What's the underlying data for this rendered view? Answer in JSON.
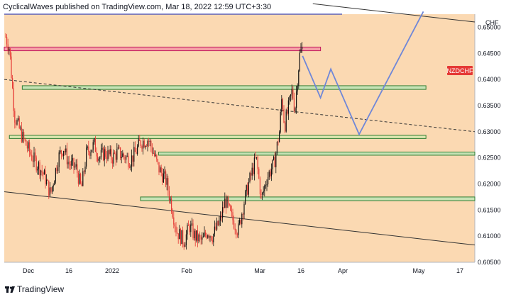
{
  "header": {
    "publisher_text": "CyclicalWaves published on TradingView.com, Mar 18, 2022 12:59 UTC+3:30"
  },
  "footer": {
    "brand": "TradingView"
  },
  "chart_data": {
    "type": "candlestick",
    "symbol": "NZDCHF",
    "currency": "CHF",
    "ylim": [
      0.605,
      0.6525
    ],
    "y_ticks": [
      "0.65000",
      "0.64500",
      "0.64000",
      "0.63500",
      "0.63000",
      "0.62500",
      "0.62000",
      "0.61500",
      "0.61000",
      "0.60500"
    ],
    "x_ticks": [
      "Dec",
      "16",
      "2022",
      "Feb",
      "Mar",
      "16",
      "Apr",
      "May",
      "17"
    ],
    "last_price_label": "NZDCHF",
    "price_path": [
      [
        "2021-11-22",
        0.649
      ],
      [
        "2021-11-24",
        0.646
      ],
      [
        "2021-11-26",
        0.633
      ],
      [
        "2021-11-29",
        0.629
      ],
      [
        "2021-12-01",
        0.627
      ],
      [
        "2021-12-03",
        0.625
      ],
      [
        "2021-12-06",
        0.623
      ],
      [
        "2021-12-08",
        0.621
      ],
      [
        "2021-12-10",
        0.618
      ],
      [
        "2021-12-13",
        0.625
      ],
      [
        "2021-12-15",
        0.627
      ],
      [
        "2021-12-17",
        0.624
      ],
      [
        "2021-12-20",
        0.623
      ],
      [
        "2021-12-22",
        0.619
      ],
      [
        "2021-12-24",
        0.626
      ],
      [
        "2021-12-27",
        0.6275
      ],
      [
        "2021-12-29",
        0.625
      ],
      [
        "2021-12-31",
        0.626
      ],
      [
        "2022-01-03",
        0.625
      ],
      [
        "2022-01-05",
        0.626
      ],
      [
        "2022-01-07",
        0.6255
      ],
      [
        "2022-01-10",
        0.6245
      ],
      [
        "2022-01-12",
        0.626
      ],
      [
        "2022-01-14",
        0.628
      ],
      [
        "2022-01-17",
        0.6285
      ],
      [
        "2022-01-19",
        0.626
      ],
      [
        "2022-01-21",
        0.623
      ],
      [
        "2022-01-24",
        0.6205
      ],
      [
        "2022-01-26",
        0.616
      ],
      [
        "2022-01-28",
        0.611
      ],
      [
        "2022-01-31",
        0.609
      ],
      [
        "2022-02-02",
        0.612
      ],
      [
        "2022-02-04",
        0.61
      ],
      [
        "2022-02-07",
        0.609
      ],
      [
        "2022-02-09",
        0.611
      ],
      [
        "2022-02-11",
        0.61
      ],
      [
        "2022-02-14",
        0.613
      ],
      [
        "2022-02-16",
        0.617
      ],
      [
        "2022-02-18",
        0.614
      ],
      [
        "2022-02-21",
        0.611
      ],
      [
        "2022-02-23",
        0.616
      ],
      [
        "2022-02-25",
        0.62
      ],
      [
        "2022-02-28",
        0.625
      ],
      [
        "2022-03-02",
        0.617
      ],
      [
        "2022-03-04",
        0.621
      ],
      [
        "2022-03-07",
        0.624
      ],
      [
        "2022-03-09",
        0.63
      ],
      [
        "2022-03-10",
        0.637
      ],
      [
        "2022-03-11",
        0.631
      ],
      [
        "2022-03-14",
        0.638
      ],
      [
        "2022-03-15",
        0.634
      ],
      [
        "2022-03-16",
        0.64
      ],
      [
        "2022-03-17",
        0.645
      ],
      [
        "2022-03-18",
        0.646
      ]
    ],
    "projection": [
      [
        "2022-03-18",
        0.6445
      ],
      [
        "2022-03-25",
        0.6365
      ],
      [
        "2022-03-29",
        0.642
      ],
      [
        "2022-04-09",
        0.6295
      ],
      [
        "2022-05-04",
        0.653
      ]
    ],
    "zones": [
      {
        "name": "resistance-zone-red",
        "color": "#f5a0a6",
        "border": "#c2185b",
        "from": "2021-11-22",
        "to": "2022-03-25",
        "y_low": 0.6455,
        "y_high": 0.6462
      },
      {
        "name": "zone-0.6385",
        "color": "#c7e3b5",
        "border": "#2e7d32",
        "from": "2021-11-29",
        "to": "2022-05-05",
        "y_low": 0.6381,
        "y_high": 0.6388
      },
      {
        "name": "zone-0.6290",
        "color": "#dde7b0",
        "border": "#2e7d32",
        "from": "2021-11-24",
        "to": "2022-05-05",
        "y_low": 0.6287,
        "y_high": 0.6293
      },
      {
        "name": "zone-0.6258",
        "color": "#c7e3b5",
        "border": "#2e7d32",
        "from": "2022-01-21",
        "to": "2022-05-24",
        "y_low": 0.6255,
        "y_high": 0.6261
      },
      {
        "name": "zone-0.6172",
        "color": "#c7e3b5",
        "border": "#2e7d32",
        "from": "2022-01-14",
        "to": "2022-05-24",
        "y_low": 0.6168,
        "y_high": 0.6175
      }
    ],
    "trend_lines": [
      {
        "name": "upper-channel-line",
        "style": "solid",
        "points": [
          [
            "2022-03-22",
            0.6545
          ],
          [
            "2022-05-24",
            0.651
          ]
        ]
      },
      {
        "name": "lower-channel-line",
        "style": "solid",
        "points": [
          [
            "2021-11-22",
            0.6185
          ],
          [
            "2022-05-24",
            0.6083
          ]
        ]
      },
      {
        "name": "middle-dashed-line",
        "style": "dashed",
        "points": [
          [
            "2021-11-22",
            0.64
          ],
          [
            "2022-05-24",
            0.63
          ]
        ]
      }
    ],
    "colors": {
      "background_fill": "#fbd9b2",
      "up_candle": "#111111",
      "down_candle": "#e53935",
      "projection": "#6f87d8",
      "symbol_badge": "#e53935"
    }
  }
}
